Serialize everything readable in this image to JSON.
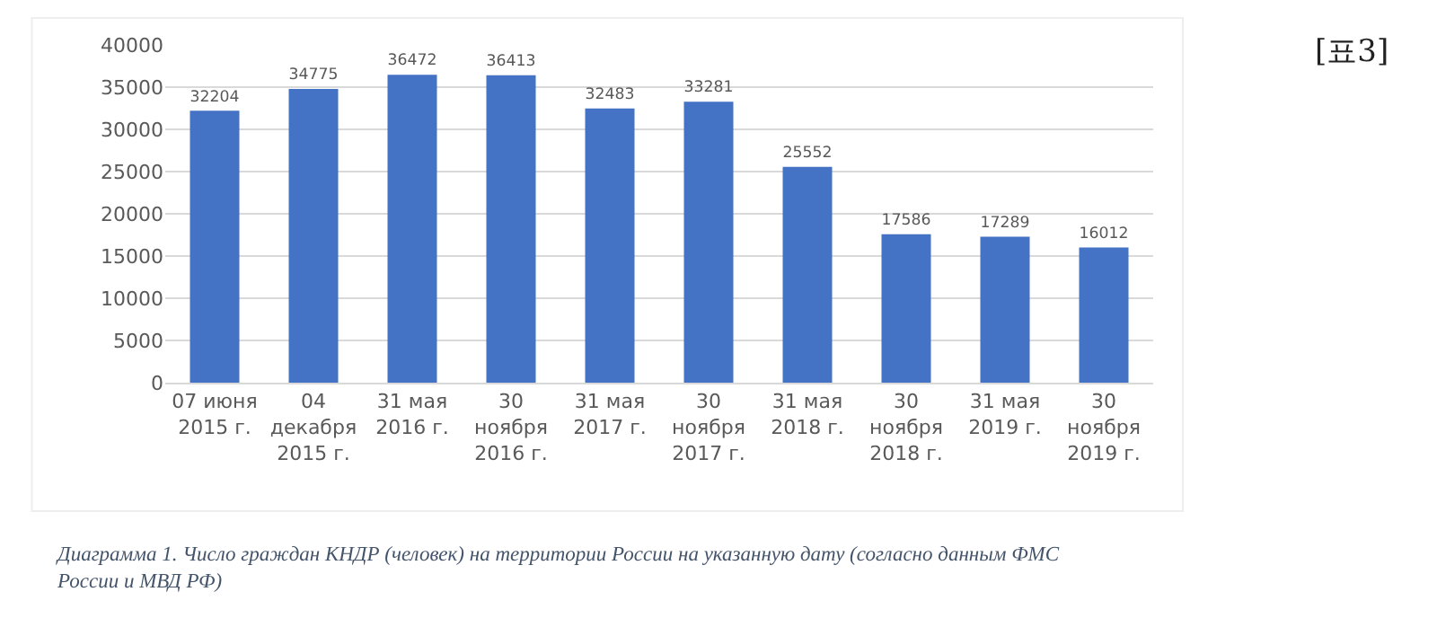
{
  "chart_data": {
    "type": "bar",
    "categories": [
      "07 июня\n2015 г.",
      "04\nдекабря\n2015 г.",
      "31 мая\n2016 г.",
      "30\nноября\n2016 г.",
      "31 мая\n2017 г.",
      "30\nноября\n2017 г.",
      "31 мая\n2018 г.",
      "30\nноября\n2018 г.",
      "31 мая\n2019 г.",
      "30\nноября\n2019 г."
    ],
    "values": [
      32204,
      34775,
      36472,
      36413,
      32483,
      33281,
      25552,
      17586,
      17289,
      16012
    ],
    "color": "#4472c4",
    "ylim": [
      0,
      40000
    ],
    "yticks": [
      0,
      5000,
      10000,
      15000,
      20000,
      25000,
      30000,
      35000,
      40000
    ],
    "grid": "y",
    "data_labels": true,
    "legend": false,
    "annotations": [
      "[표3]",
      "Диаграмма 1. Число граждан КНДР (человек) на территории России на указанную дату (согласно данным ФМС России и МВД РФ)"
    ]
  }
}
